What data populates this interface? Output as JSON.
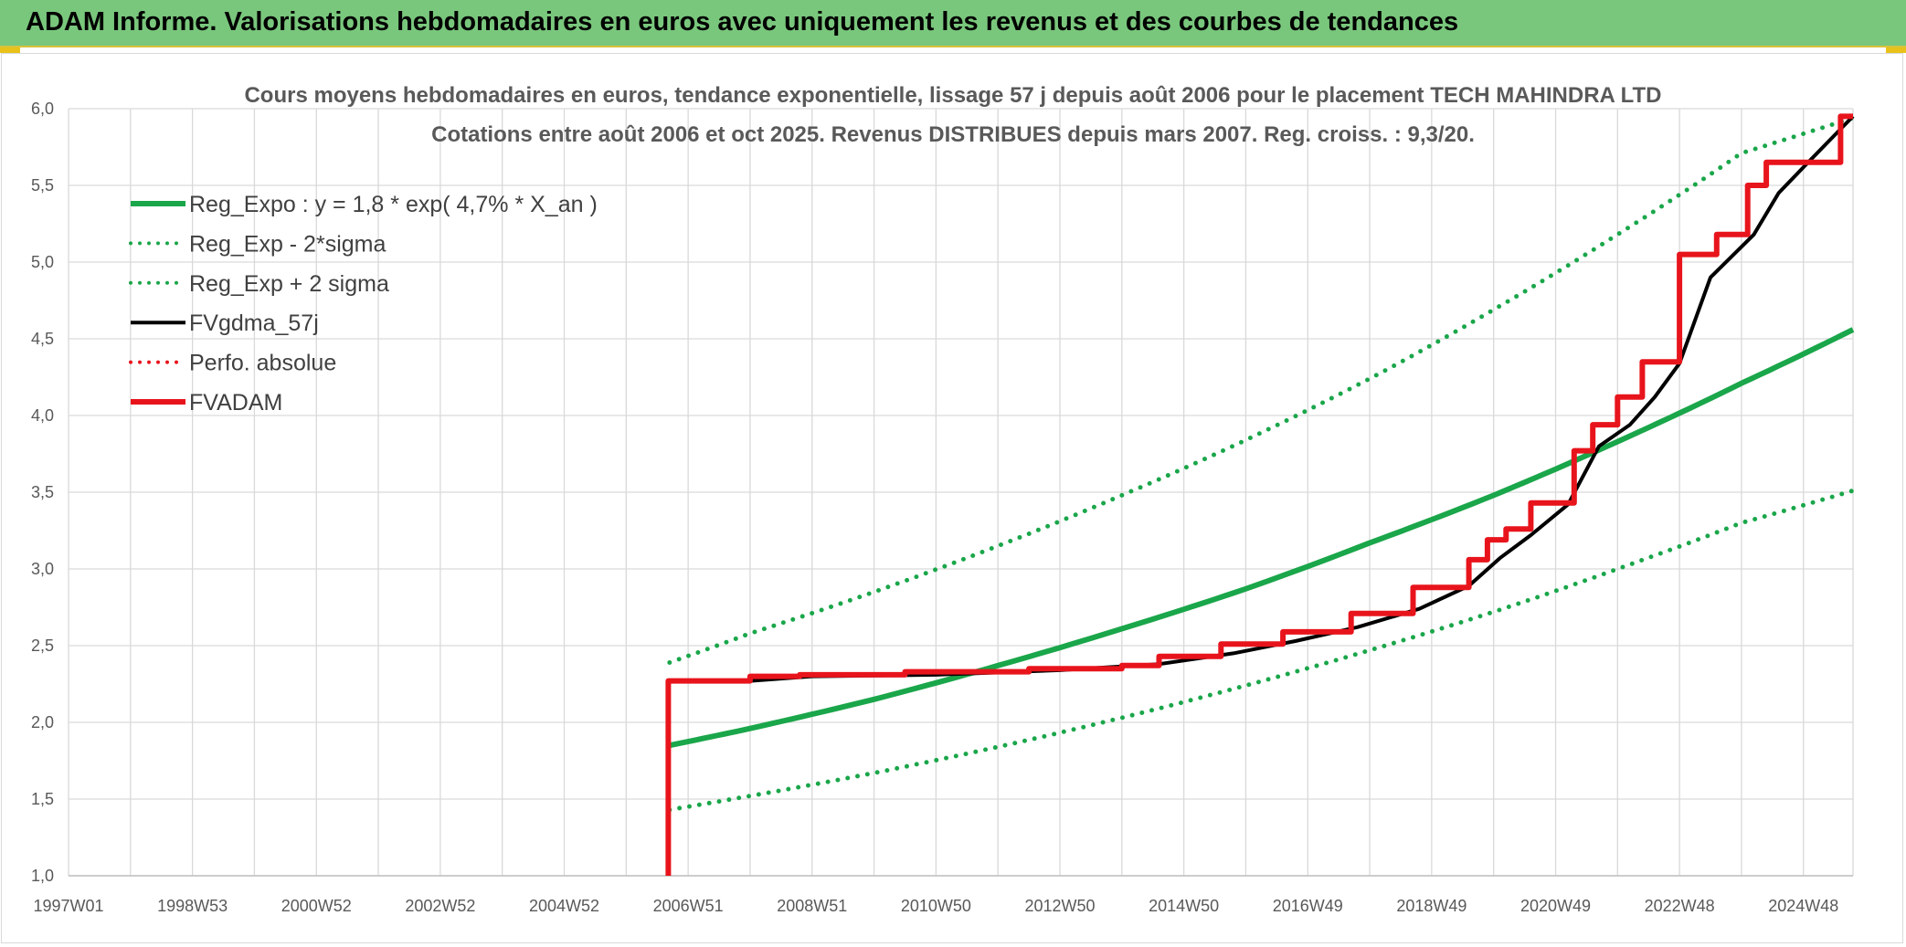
{
  "header": {
    "title": "ADAM Informe. Valorisations hebdomadaires en euros avec uniquement les revenus et des courbes de tendances",
    "color": "#79c77c"
  },
  "chart_data": {
    "type": "line",
    "title": "Cours moyens hebdomadaires en euros, tendance exponentielle, lissage 57 j depuis août 2006 pour le placement TECH MAHINDRA LTD",
    "subtitle": "Cotations entre août 2006 et oct 2025. Revenus DISTRIBUES depuis mars 2007. Reg. croiss. : 9,3/20.",
    "xlabel": "",
    "ylabel": "",
    "ylim": [
      1.0,
      6.0
    ],
    "xlim": [
      1997.0,
      2025.8
    ],
    "grid": true,
    "legend_position": "top-left",
    "yticks": [
      "1,0",
      "1,5",
      "2,0",
      "2,5",
      "3,0",
      "3,5",
      "4,0",
      "4,5",
      "5,0",
      "5,5",
      "6,0"
    ],
    "xticks": [
      {
        "label": "1997W01",
        "x": 1997.0
      },
      {
        "label": "1998W53",
        "x": 1999.0
      },
      {
        "label": "2000W52",
        "x": 2001.0
      },
      {
        "label": "2002W52",
        "x": 2003.0
      },
      {
        "label": "2004W52",
        "x": 2005.0
      },
      {
        "label": "2006W51",
        "x": 2007.0
      },
      {
        "label": "2008W51",
        "x": 2009.0
      },
      {
        "label": "2010W50",
        "x": 2011.0
      },
      {
        "label": "2012W50",
        "x": 2013.0
      },
      {
        "label": "2014W50",
        "x": 2015.0
      },
      {
        "label": "2016W49",
        "x": 2017.0
      },
      {
        "label": "2018W49",
        "x": 2019.0
      },
      {
        "label": "2020W49",
        "x": 2021.0
      },
      {
        "label": "2022W48",
        "x": 2023.0
      },
      {
        "label": "2024W48",
        "x": 2025.0
      }
    ],
    "series": [
      {
        "name": "Reg_Expo : y = 1,8 * exp( 4,7% *  X_an )",
        "color": "#1aa64a",
        "style": "solid",
        "width": 6,
        "x": [
          2006.7,
          2008,
          2010,
          2012,
          2014,
          2016,
          2018,
          2020,
          2022,
          2024,
          2025.8
        ],
        "y": [
          1.85,
          1.96,
          2.15,
          2.37,
          2.61,
          2.87,
          3.17,
          3.48,
          3.83,
          4.21,
          4.56
        ]
      },
      {
        "name": "Reg_Exp - 2*sigma",
        "color": "#1aa64a",
        "style": "dotted",
        "width": 5,
        "x": [
          2006.7,
          2008,
          2010,
          2012,
          2014,
          2016,
          2018,
          2020,
          2022,
          2024,
          2025.8
        ],
        "y": [
          1.43,
          1.52,
          1.67,
          1.84,
          2.03,
          2.24,
          2.47,
          2.72,
          3.0,
          3.3,
          3.51
        ]
      },
      {
        "name": "Reg_Exp + 2 sigma",
        "color": "#1aa64a",
        "style": "dotted",
        "width": 5,
        "x": [
          2006.7,
          2008,
          2010,
          2012,
          2014,
          2016,
          2018,
          2020,
          2022,
          2024,
          2025.8
        ],
        "y": [
          2.39,
          2.58,
          2.85,
          3.15,
          3.48,
          3.84,
          4.24,
          4.69,
          5.18,
          5.71,
          5.94
        ]
      },
      {
        "name": "FVgdma_57j",
        "color": "#000000",
        "style": "solid",
        "width": 4,
        "x": [
          2006.75,
          2008.0,
          2009.0,
          2011.0,
          2013.0,
          2014.6,
          2015.8,
          2016.8,
          2017.8,
          2018.8,
          2019.6,
          2020.1,
          2020.6,
          2021.2,
          2021.7,
          2022.2,
          2022.6,
          2023.0,
          2023.5,
          2024.2,
          2024.6,
          2025.1,
          2025.8
        ],
        "y": [
          2.27,
          2.27,
          2.3,
          2.31,
          2.34,
          2.38,
          2.45,
          2.53,
          2.62,
          2.74,
          2.89,
          3.07,
          3.22,
          3.42,
          3.8,
          3.94,
          4.12,
          4.34,
          4.9,
          5.18,
          5.45,
          5.66,
          5.95
        ]
      },
      {
        "name": "Perfo. absolue",
        "color": "#e8141c",
        "style": "dotted",
        "width": 3,
        "x": [],
        "y": []
      },
      {
        "name": "FVADAM",
        "color": "#e8141c",
        "style": "solid",
        "width": 6,
        "x": [
          2006.68,
          2006.68,
          2006.68,
          2008.0,
          2008.0,
          2008.8,
          2008.8,
          2010.5,
          2010.5,
          2012.5,
          2012.5,
          2014.0,
          2014.0,
          2014.6,
          2014.6,
          2015.6,
          2015.6,
          2016.6,
          2016.6,
          2017.7,
          2017.7,
          2018.7,
          2018.7,
          2019.6,
          2019.6,
          2019.9,
          2019.9,
          2020.2,
          2020.2,
          2020.6,
          2020.6,
          2021.3,
          2021.3,
          2021.6,
          2021.6,
          2022.0,
          2022.0,
          2022.4,
          2022.4,
          2023.0,
          2023.0,
          2023.6,
          2023.6,
          2024.1,
          2024.1,
          2024.4,
          2024.4,
          2024.8,
          2024.8,
          2025.6,
          2025.6,
          2025.8
        ],
        "y": [
          1.0,
          2.27,
          2.27,
          2.27,
          2.3,
          2.3,
          2.31,
          2.31,
          2.33,
          2.33,
          2.35,
          2.35,
          2.37,
          2.37,
          2.43,
          2.43,
          2.51,
          2.51,
          2.59,
          2.59,
          2.71,
          2.71,
          2.88,
          2.88,
          3.06,
          3.06,
          3.19,
          3.19,
          3.26,
          3.26,
          3.43,
          3.43,
          3.77,
          3.77,
          3.94,
          3.94,
          4.12,
          4.12,
          4.35,
          4.35,
          5.05,
          5.05,
          5.18,
          5.18,
          5.5,
          5.5,
          5.65,
          5.65,
          5.65,
          5.65,
          5.95,
          5.95
        ]
      }
    ]
  }
}
